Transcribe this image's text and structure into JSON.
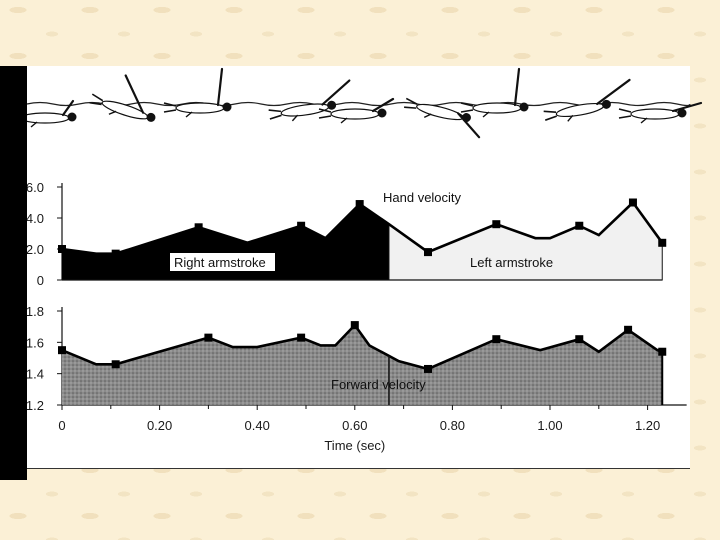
{
  "chart_data": [
    {
      "type": "area",
      "x": [
        0,
        0.07,
        0.11,
        0.28,
        0.38,
        0.49,
        0.54,
        0.61,
        0.67,
        0.75,
        0.89,
        0.97,
        1.0,
        1.06,
        1.1,
        1.17,
        1.23
      ],
      "series": [
        {
          "values": [
            2.0,
            1.7,
            1.7,
            3.4,
            2.4,
            3.5,
            2.7,
            4.9,
            3.6,
            1.8,
            3.6,
            2.7,
            2.7,
            3.5,
            2.9,
            5.0,
            2.4
          ],
          "markers_at": [
            0,
            2,
            3,
            5,
            7,
            9,
            10,
            13,
            15,
            16
          ]
        }
      ],
      "annotations": [
        "Hand velocity",
        "Right armstroke",
        "Left armstroke"
      ],
      "region_split_x": 0.67,
      "ylim": [
        0,
        6.0
      ],
      "yticks": [
        "6.0",
        "4.0",
        "2.0",
        "0"
      ],
      "grid": false
    },
    {
      "type": "area",
      "x": [
        0,
        0.07,
        0.11,
        0.3,
        0.35,
        0.4,
        0.49,
        0.53,
        0.56,
        0.6,
        0.63,
        0.69,
        0.75,
        0.89,
        0.98,
        1.06,
        1.1,
        1.16,
        1.22,
        1.23
      ],
      "series": [
        {
          "values": [
            1.55,
            1.46,
            1.46,
            1.63,
            1.57,
            1.57,
            1.63,
            1.58,
            1.58,
            1.71,
            1.58,
            1.48,
            1.43,
            1.62,
            1.55,
            1.62,
            1.54,
            1.68,
            1.55,
            1.54
          ],
          "markers_at": [
            0,
            2,
            3,
            6,
            9,
            12,
            13,
            15,
            17,
            19
          ]
        }
      ],
      "annotations": [
        "Forward velocity"
      ],
      "divider_x": 0.67,
      "xticks": [
        "0",
        "0.20",
        "0.40",
        "0.60",
        "0.80",
        "1.00",
        "1.20"
      ],
      "xlabel": "Time (sec)",
      "xlim": [
        0,
        1.28
      ],
      "ylim": [
        1.2,
        1.8
      ],
      "yticks": [
        "1.8",
        "1.6",
        "1.4",
        "1.2"
      ],
      "grid": false
    }
  ]
}
